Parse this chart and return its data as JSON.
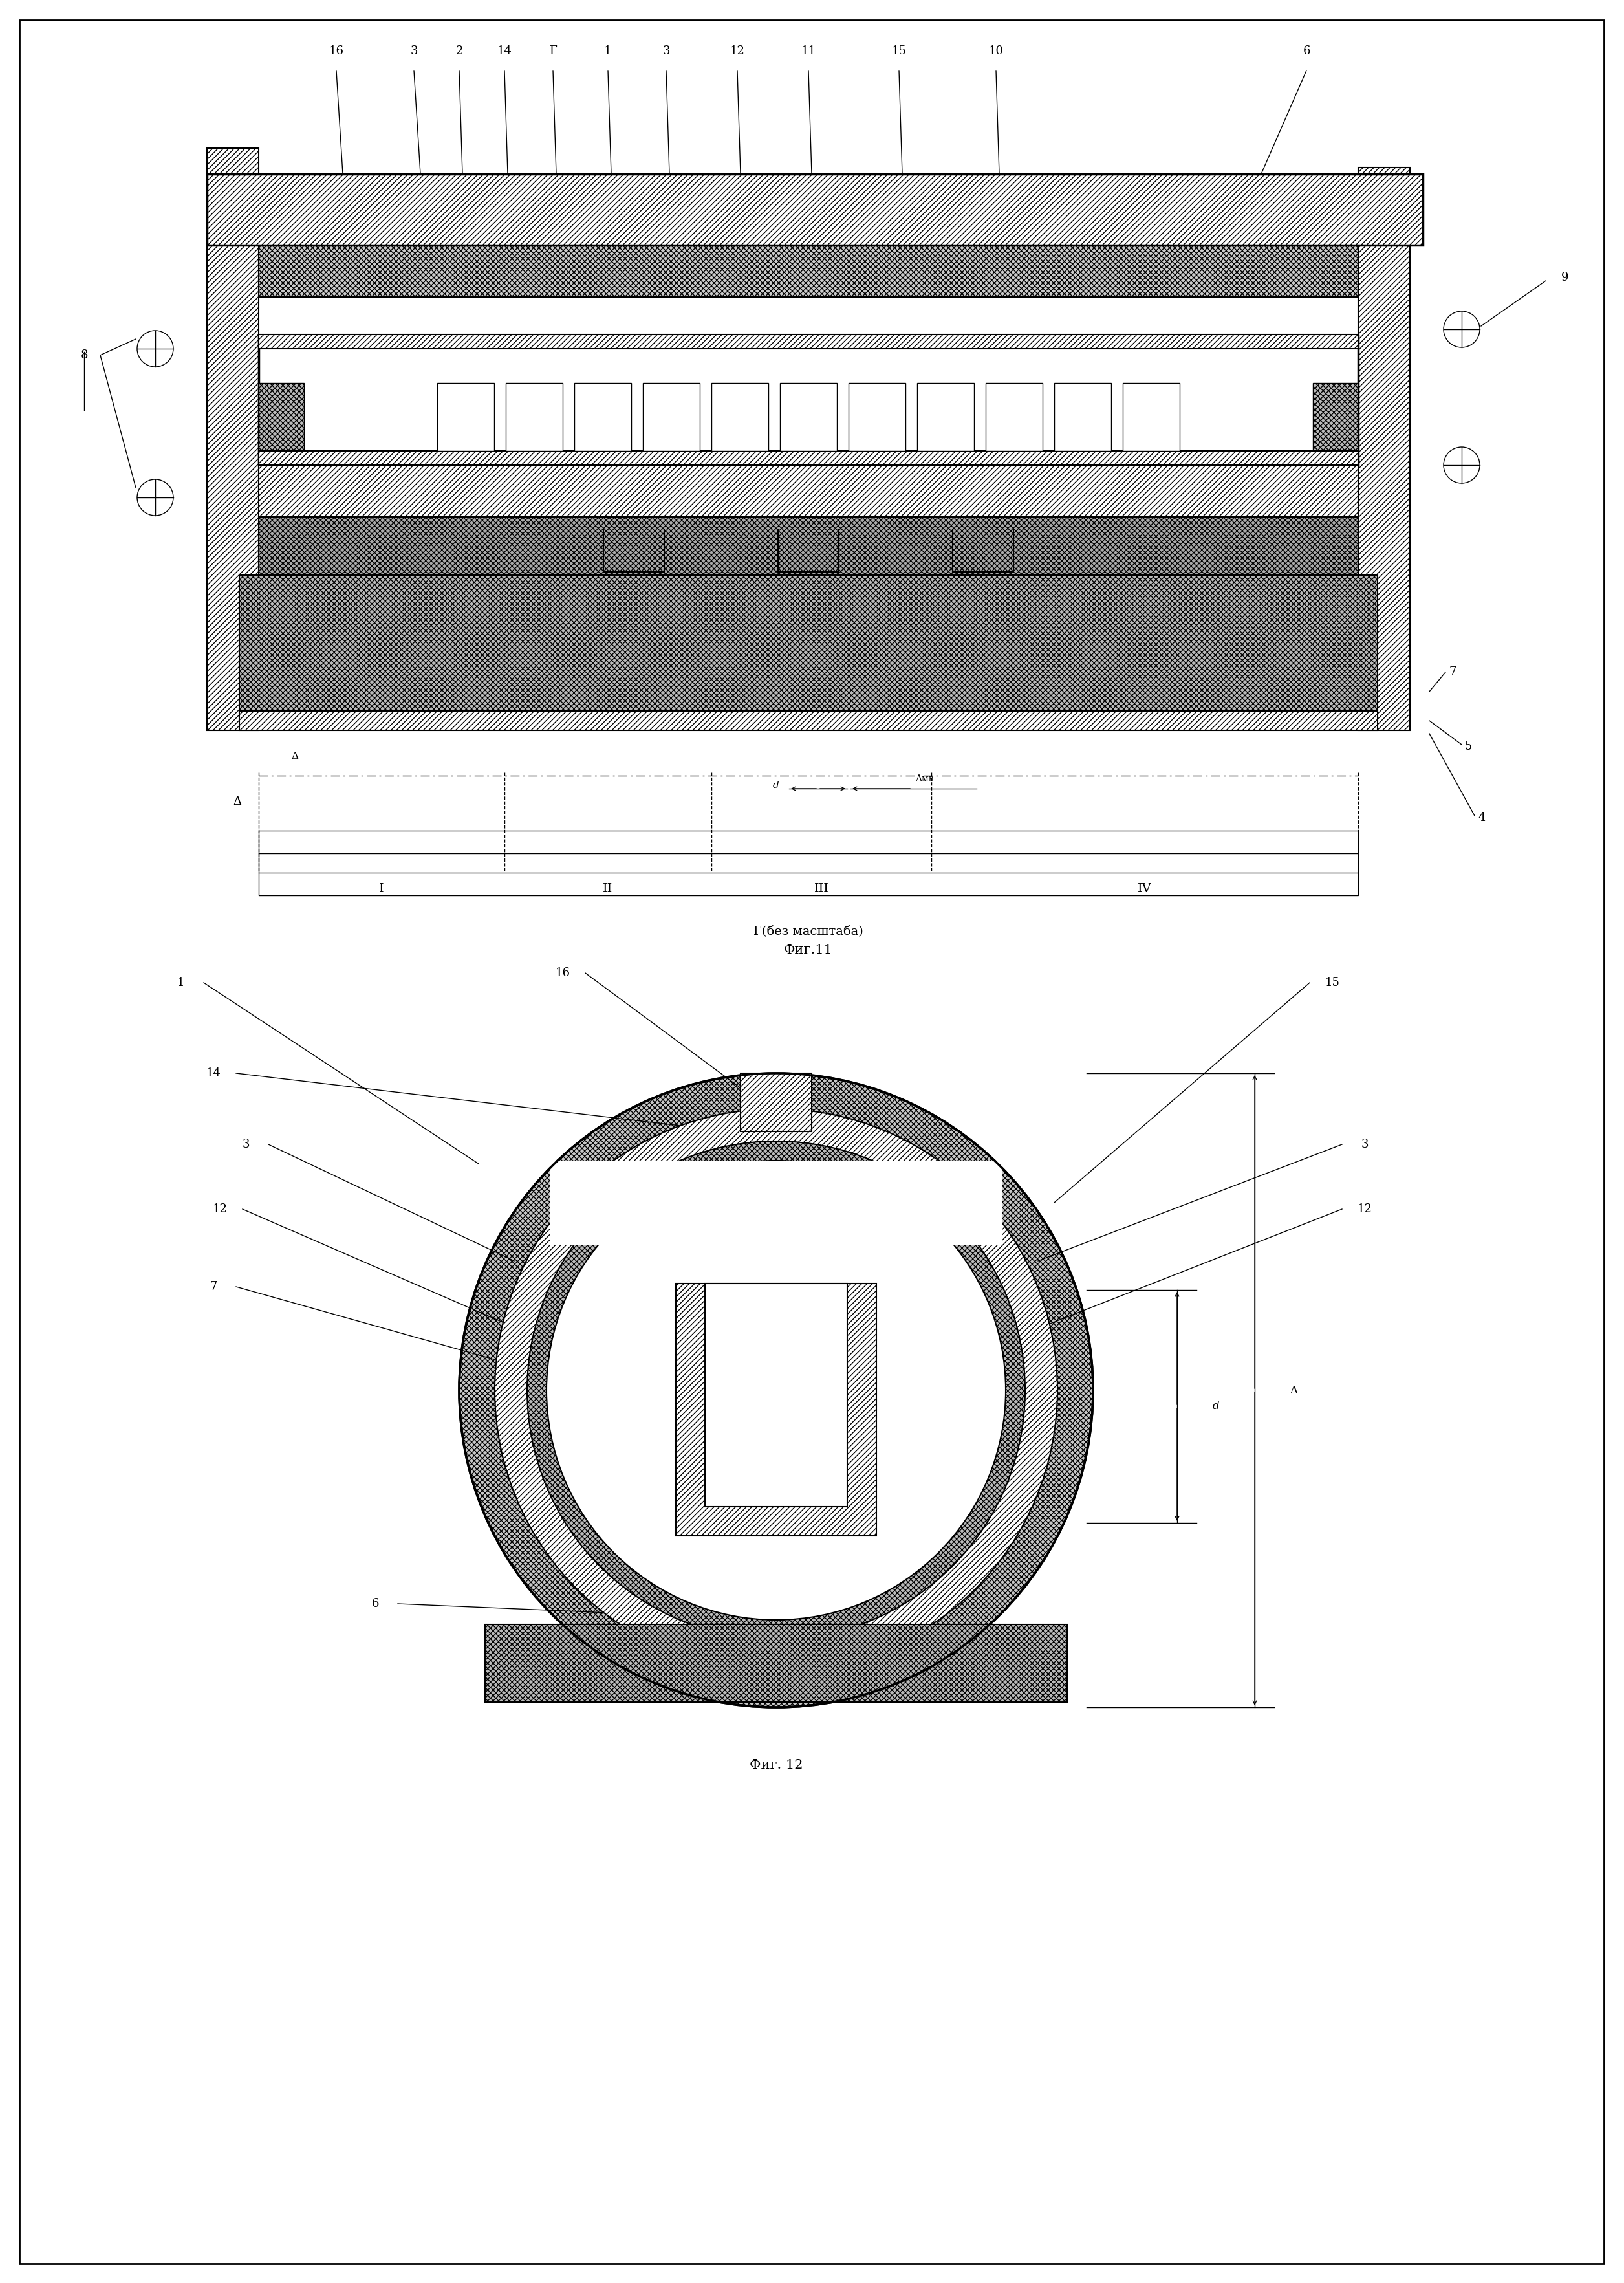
{
  "fig_width": 25.11,
  "fig_height": 35.29,
  "bg_color": "#ffffff",
  "line_color": "#000000",
  "fig11_caption": "Фиг.11",
  "fig12_caption": "Фиг. 12",
  "g_label": "Г(без масштаба)",
  "top_labels": [
    "16",
    "3",
    "2",
    "14",
    "Г",
    "1",
    "3",
    "12",
    "11",
    "15",
    "10",
    "6"
  ],
  "top_label_x_text": [
    520,
    640,
    710,
    780,
    855,
    940,
    1030,
    1140,
    1250,
    1390,
    1540,
    2020
  ],
  "top_label_x_draw": [
    530,
    650,
    715,
    785,
    860,
    945,
    1035,
    1145,
    1255,
    1395,
    1545,
    1950
  ],
  "section_labels": [
    "I",
    "II",
    "III",
    "IV"
  ],
  "fig12_labels_left": [
    "1",
    "14",
    "3",
    "12",
    "7",
    "6"
  ],
  "fig12_labels_right": [
    "16",
    "15",
    "3",
    "12"
  ]
}
